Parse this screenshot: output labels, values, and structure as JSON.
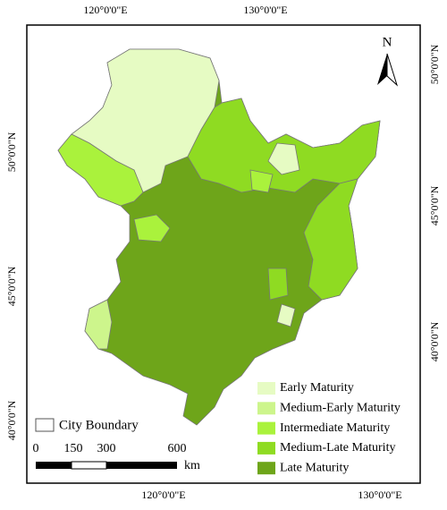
{
  "map": {
    "lon_labels_top": [
      "120°0'0\"E",
      "130°0'0\"E"
    ],
    "lon_labels_bottom": [
      "120°0'0\"E",
      "130°0'0\"E"
    ],
    "lat_labels_left": [
      "50°0'0\"N",
      "45°0'0\"N",
      "40°0'0\"N"
    ],
    "lat_labels_right": [
      "50°0'0\"N",
      "45°0'0\"N",
      "40°0'0\"N"
    ],
    "north": "N",
    "city_boundary": "City Boundary",
    "scale_bar": {
      "labels": [
        "0",
        "150",
        "300",
        "600"
      ],
      "unit": "km"
    },
    "legend": [
      {
        "name": "Early Maturity",
        "color": "#e6fbc3"
      },
      {
        "name": "Medium-Early Maturity",
        "color": "#cdf58c"
      },
      {
        "name": "Intermediate Maturity",
        "color": "#aaf23c"
      },
      {
        "name": "Medium-Late Maturity",
        "color": "#8fdb22"
      },
      {
        "name": "Late Maturity",
        "color": "#6ea51a"
      }
    ]
  }
}
